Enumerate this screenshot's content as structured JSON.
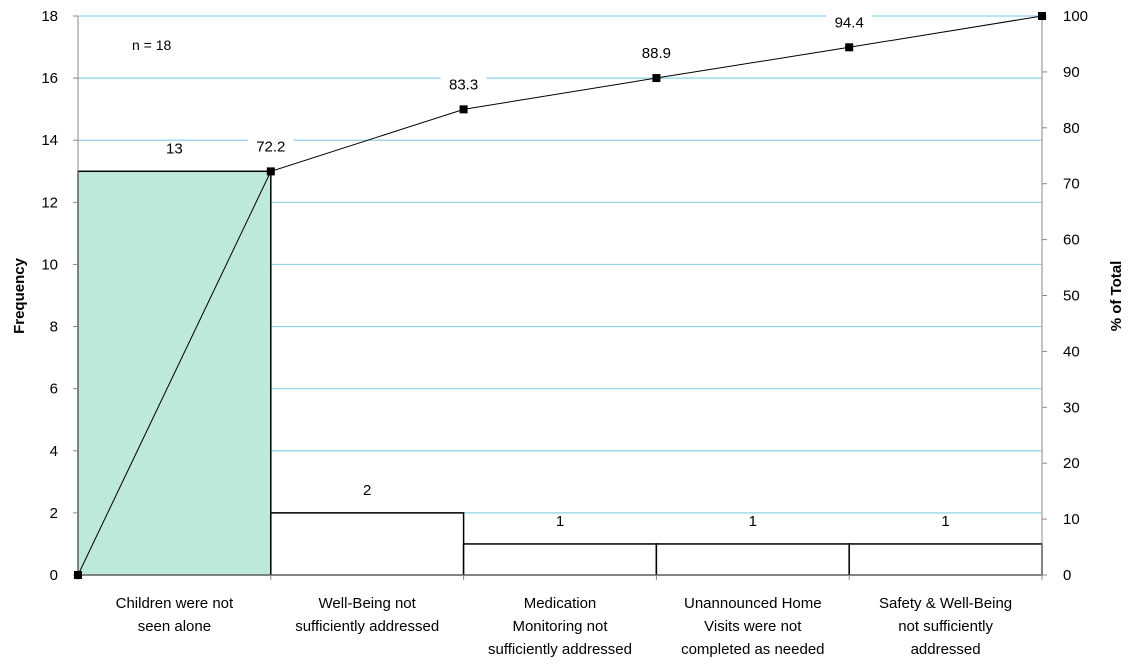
{
  "chart_data": {
    "type": "pareto",
    "annotation": "n =  18",
    "ylabel_left": "Frequency",
    "ylabel_right": "% of Total",
    "ylim_left": [
      0,
      18
    ],
    "ylim_right": [
      0,
      100
    ],
    "yticks_left": [
      0,
      2,
      4,
      6,
      8,
      10,
      12,
      14,
      16,
      18
    ],
    "yticks_right": [
      0,
      10,
      20,
      30,
      40,
      50,
      60,
      70,
      80,
      90,
      100
    ],
    "categories": [
      [
        "Children were not",
        "seen alone"
      ],
      [
        "Well-Being not",
        "sufficiently addressed"
      ],
      [
        "Medication",
        "Monitoring not",
        "sufficiently addressed"
      ],
      [
        "Unannounced Home",
        "Visits were not",
        "completed as needed"
      ],
      [
        "Safety & Well-Being",
        "not sufficiently",
        "addressed"
      ]
    ],
    "values": [
      13,
      2,
      1,
      1,
      1
    ],
    "value_labels": [
      "13",
      "2",
      "1",
      "1",
      "1"
    ],
    "cumulative_percent": [
      0,
      72.2,
      83.3,
      88.9,
      94.4,
      100
    ],
    "cumulative_labels": [
      "",
      "72.2",
      "83.3",
      "88.9",
      "94.4",
      ""
    ],
    "colors": {
      "first_bar": "#bde8dc",
      "other_bars": "#ffffff",
      "gridline": "#8fd3e6",
      "line": "#000000"
    }
  }
}
